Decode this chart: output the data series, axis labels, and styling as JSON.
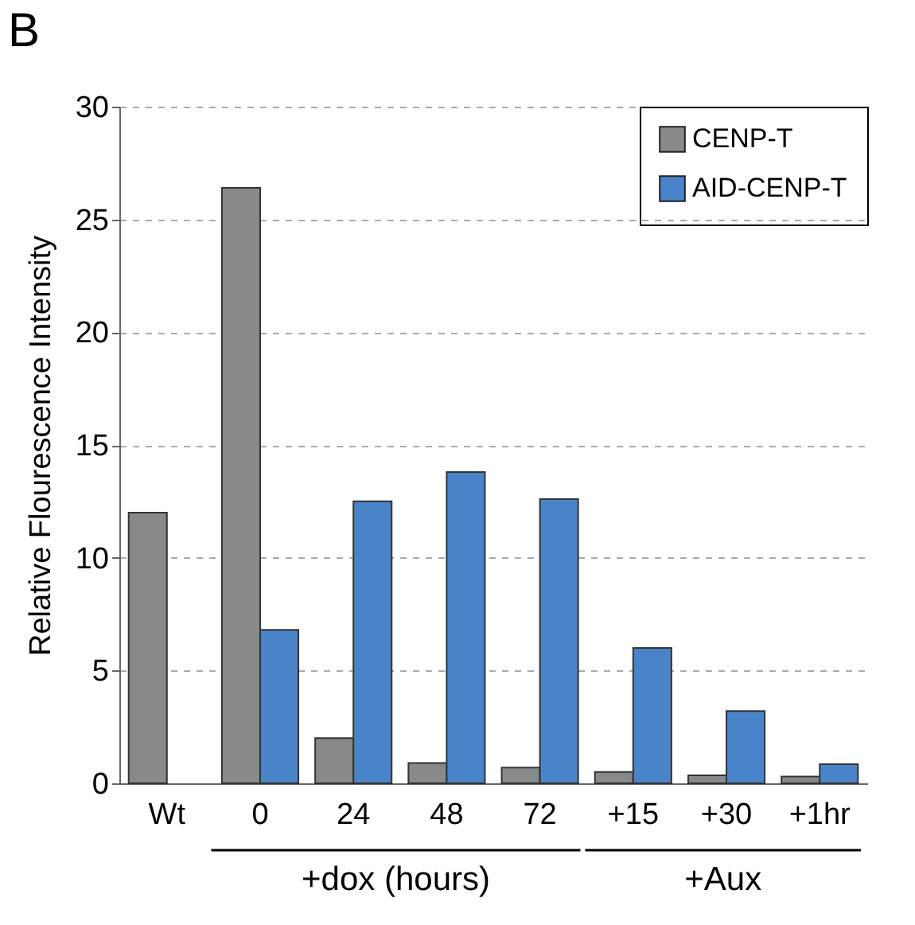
{
  "chart_data": {
    "type": "bar",
    "ylabel": "Relative Flourescence Intensity",
    "categories": [
      "Wt",
      "0",
      "24",
      "48",
      "72",
      "+15",
      "+30",
      "+1hr"
    ],
    "series": [
      {
        "name": "CENP-T",
        "color": "#868b89",
        "values": [
          12.0,
          26.4,
          2.0,
          0.9,
          0.7,
          0.5,
          0.35,
          0.3
        ]
      },
      {
        "name": "AID-CENP-T",
        "color": "#4a84c8",
        "values": [
          null,
          6.8,
          12.5,
          13.8,
          12.6,
          6.0,
          3.2,
          0.85
        ]
      }
    ],
    "ylim": [
      0,
      30
    ],
    "yticks": [
      0,
      5,
      10,
      15,
      20,
      25,
      30
    ],
    "grid": "y",
    "legend": "top right",
    "annotations": [
      "B",
      "+dox (hours)",
      "+Aux"
    ]
  }
}
